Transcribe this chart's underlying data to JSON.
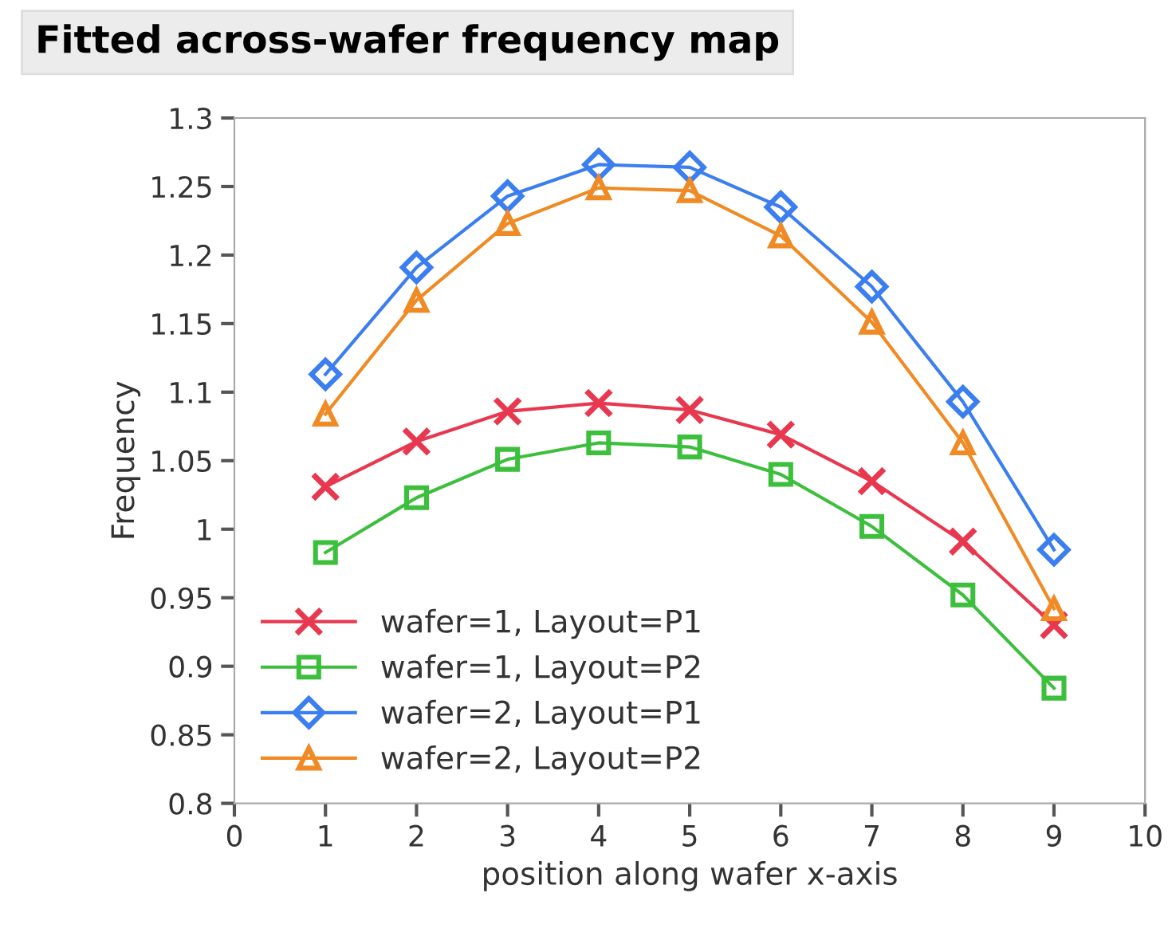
{
  "chart_data": {
    "type": "line",
    "title": "Fitted across-wafer frequency map",
    "xlabel": "position along wafer x-axis",
    "ylabel": "Frequency",
    "x": [
      1,
      2,
      3,
      4,
      5,
      6,
      7,
      8,
      9
    ],
    "series": [
      {
        "name": "wafer=1, Layout=P1",
        "color": "#e8384f",
        "marker": "cross",
        "values": [
          1.031,
          1.064,
          1.086,
          1.092,
          1.087,
          1.069,
          1.035,
          0.991,
          0.93
        ]
      },
      {
        "name": "wafer=1, Layout=P2",
        "color": "#3cbf3c",
        "marker": "square",
        "values": [
          0.983,
          1.023,
          1.051,
          1.063,
          1.06,
          1.04,
          1.002,
          0.952,
          0.884
        ]
      },
      {
        "name": "wafer=2, Layout=P1",
        "color": "#3a7ef0",
        "marker": "diamond",
        "values": [
          1.113,
          1.191,
          1.243,
          1.266,
          1.264,
          1.235,
          1.177,
          1.093,
          0.985
        ]
      },
      {
        "name": "wafer=2, Layout=P2",
        "color": "#f08a24",
        "marker": "triangle",
        "values": [
          1.084,
          1.167,
          1.223,
          1.249,
          1.247,
          1.214,
          1.151,
          1.063,
          0.942
        ]
      }
    ],
    "xlim": [
      0,
      10
    ],
    "xticks": [
      0,
      1,
      2,
      3,
      4,
      5,
      6,
      7,
      8,
      9,
      10
    ],
    "ylim": [
      0.8,
      1.3
    ],
    "yticks": [
      {
        "value": 0.8,
        "label": "0.8"
      },
      0.85,
      {
        "value": 0.9,
        "label": "0.9"
      },
      0.95,
      {
        "value": 1.0,
        "label": "1"
      },
      1.05,
      {
        "value": 1.1,
        "label": "1.1"
      },
      1.15,
      {
        "value": 1.2,
        "label": "1.2"
      },
      1.25,
      {
        "value": 1.3,
        "label": "1.3"
      }
    ],
    "grid": false,
    "legend": "bottom left",
    "line_style": "solid"
  }
}
